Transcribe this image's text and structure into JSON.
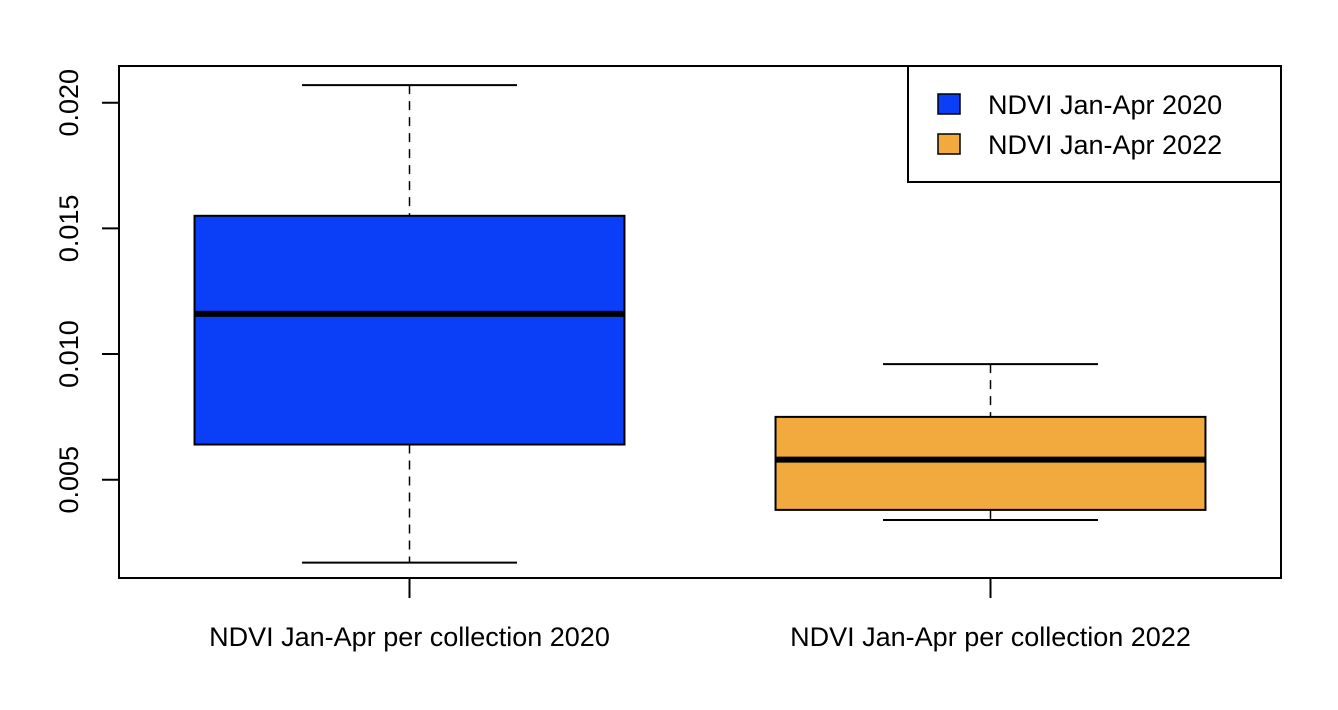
{
  "chart_data": {
    "type": "boxplot",
    "title": "",
    "xlabel": "",
    "ylabel": "",
    "ylim": [
      0.00109,
      0.02146
    ],
    "yticks": [
      0.005,
      0.01,
      0.015,
      0.02
    ],
    "ytick_labels": [
      "0.005",
      "0.010",
      "0.015",
      "0.020"
    ],
    "categories": [
      "NDVI Jan-Apr per collection 2020",
      "NDVI Jan-Apr per collection 2022"
    ],
    "boxes": [
      {
        "whisker_low": 0.0017,
        "q1": 0.0064,
        "median": 0.0116,
        "q3": 0.0155,
        "whisker_high": 0.0207,
        "color": "#0a3ef7"
      },
      {
        "whisker_low": 0.0034,
        "q1": 0.0038,
        "median": 0.0058,
        "q3": 0.0075,
        "whisker_high": 0.0096,
        "color": "#f2a93e"
      }
    ],
    "legend": {
      "position": "top-right",
      "entries": [
        {
          "label": "NDVI Jan-Apr 2020",
          "color": "#0a3ef7"
        },
        {
          "label": "NDVI Jan-Apr 2022",
          "color": "#f2a93e"
        }
      ]
    },
    "grid": false
  }
}
